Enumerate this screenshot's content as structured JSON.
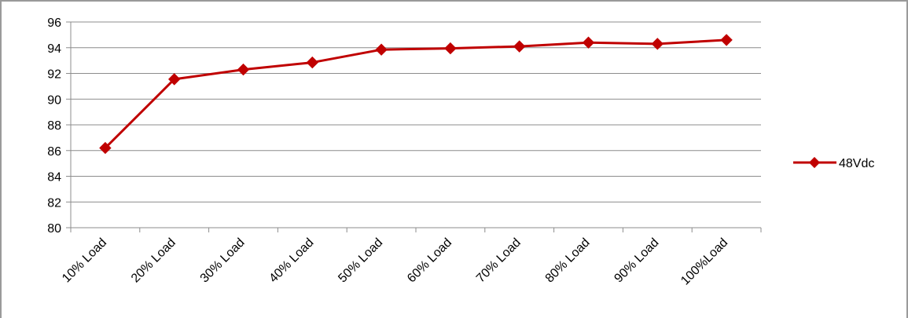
{
  "chart_data": {
    "type": "line",
    "title": "",
    "xlabel": "",
    "ylabel": "",
    "categories": [
      "10% Load",
      "20% Load",
      "30% Load",
      "40% Load",
      "50% Load",
      "60% Load",
      "70% Load",
      "80% Load",
      "90% Load",
      "100%Load"
    ],
    "series": [
      {
        "name": "48Vdc",
        "values": [
          86.2,
          91.55,
          92.3,
          92.85,
          93.85,
          93.95,
          94.1,
          94.4,
          94.3,
          94.6
        ]
      }
    ],
    "ylim": [
      80,
      96
    ],
    "yticks": [
      "80",
      "82",
      "84",
      "86",
      "88",
      "90",
      "92",
      "94",
      "96"
    ],
    "grid": "horizontal",
    "legend_position": "right",
    "series_color": "#c00000",
    "marker": "diamond"
  }
}
